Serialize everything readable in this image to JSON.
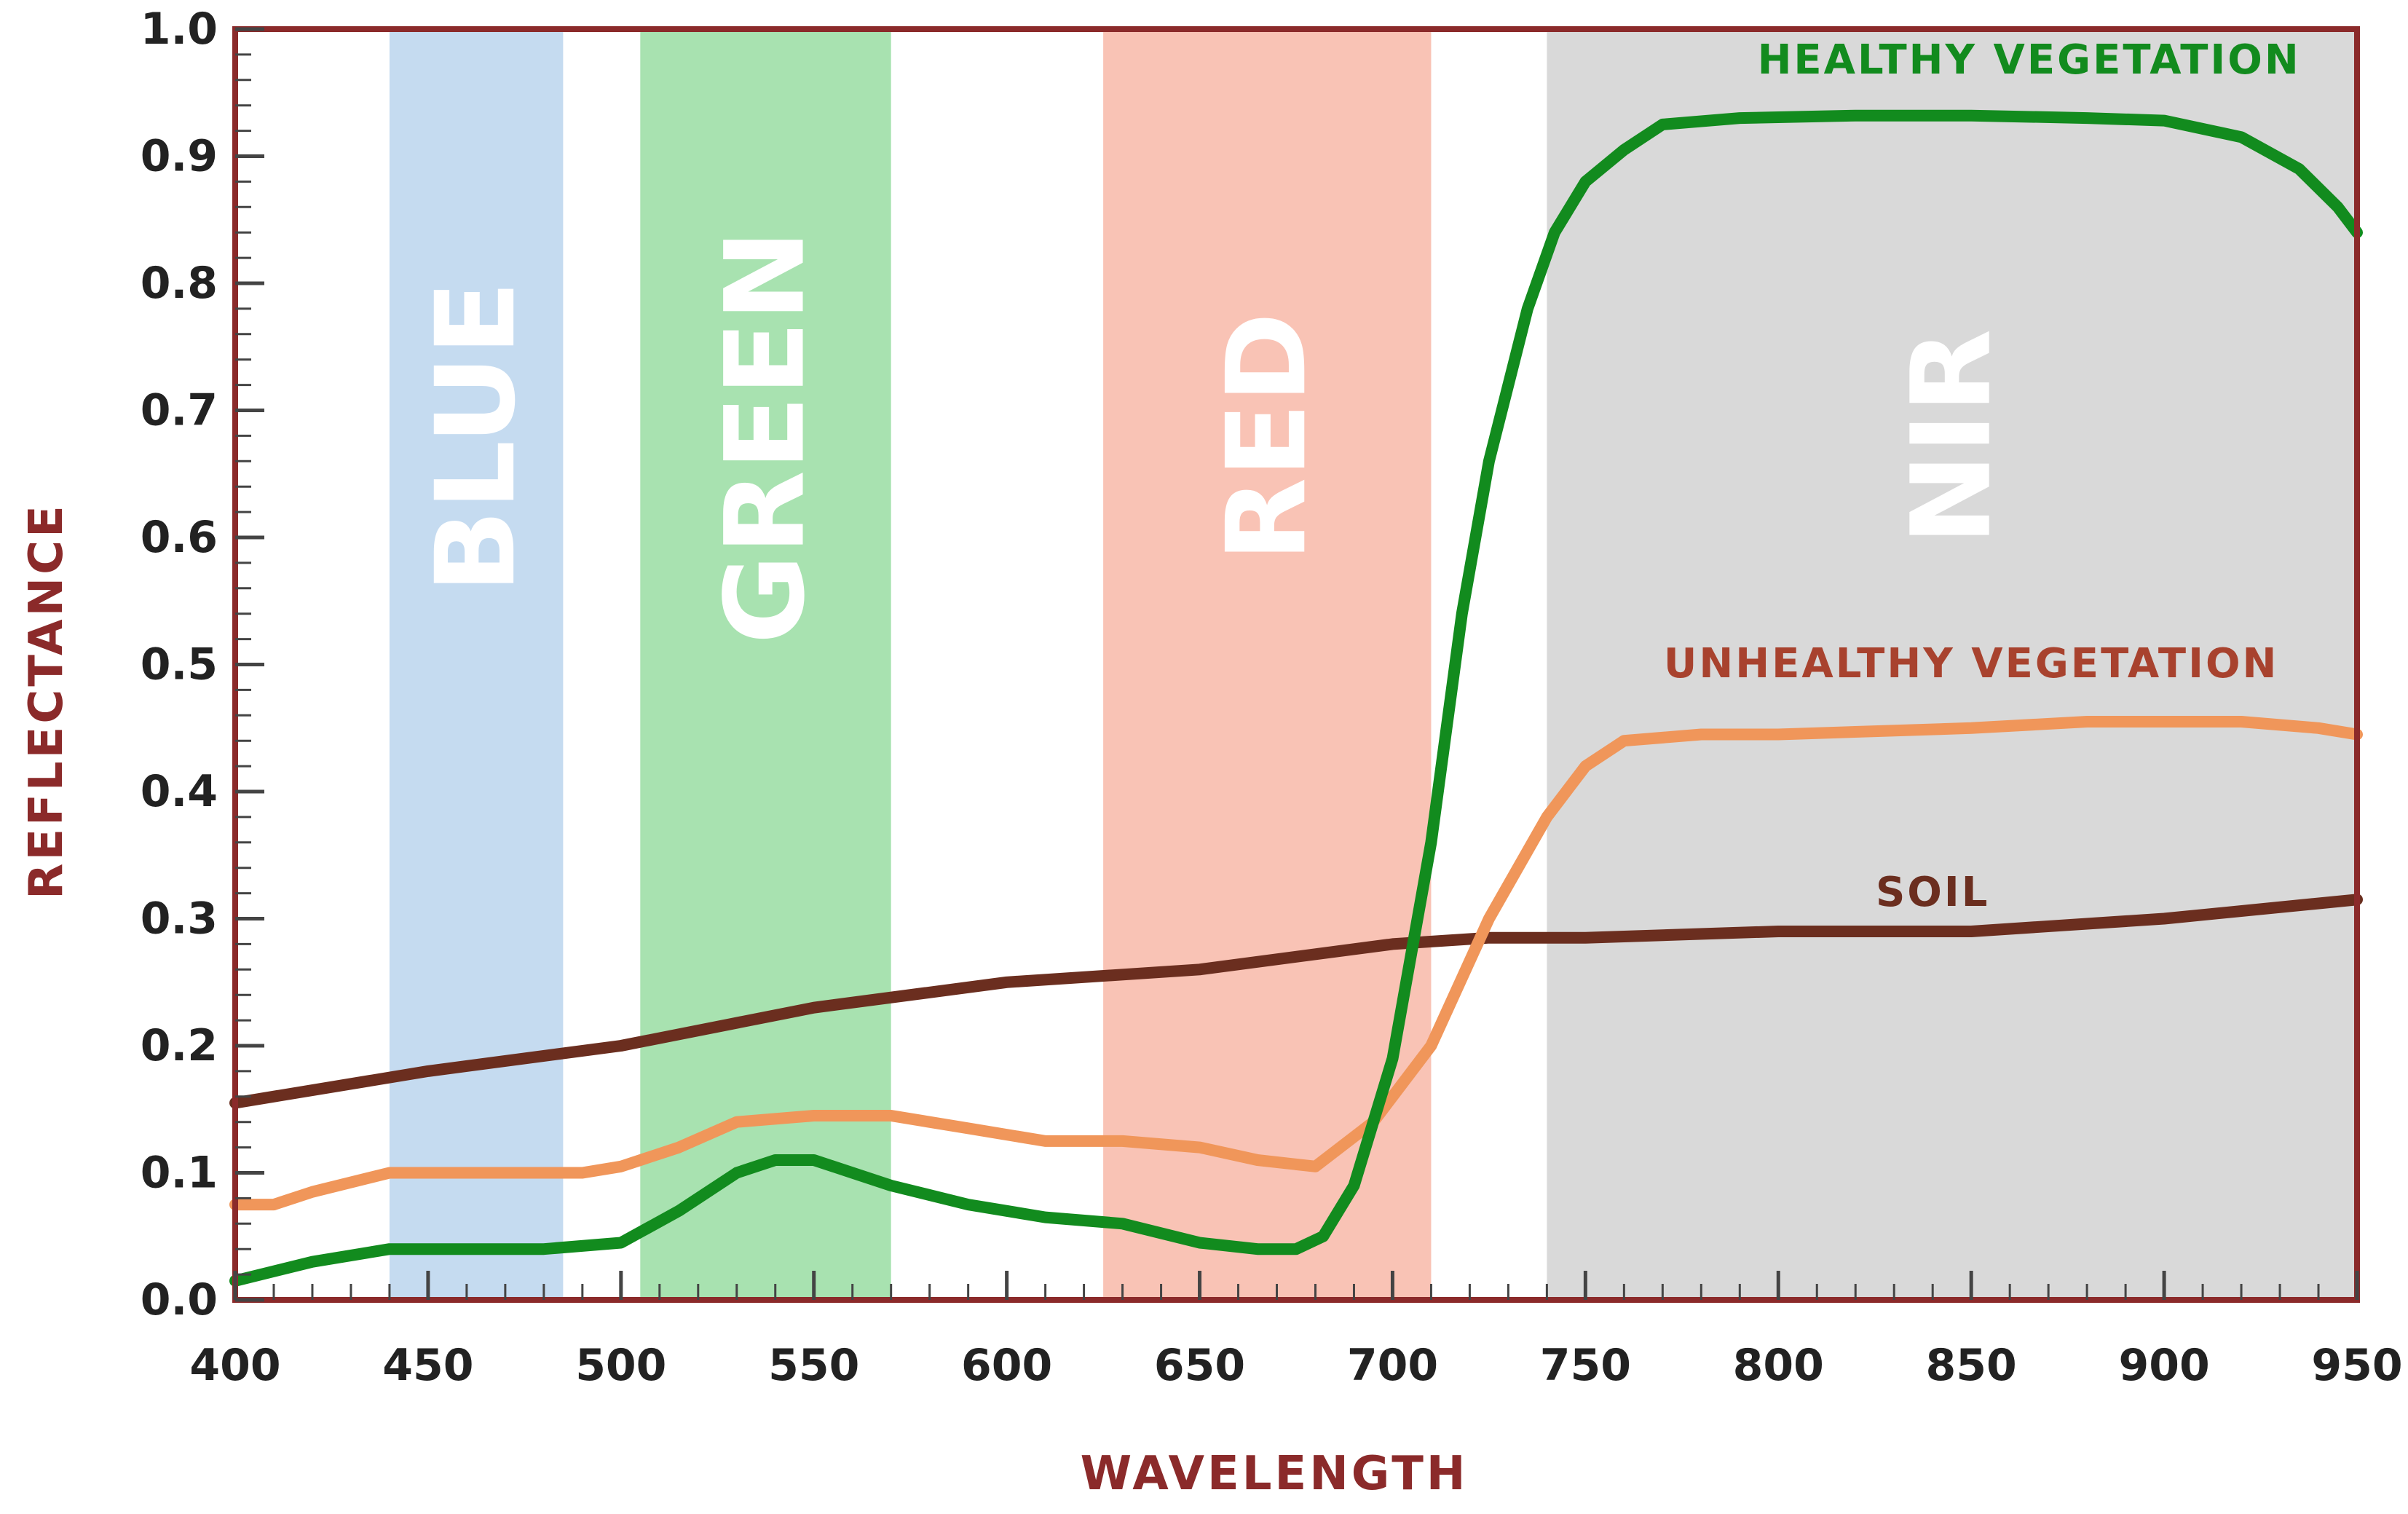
{
  "chart_data": {
    "type": "line",
    "title": "",
    "xlabel": "WAVELENGTH",
    "ylabel": "REFLECTANCE",
    "xlim": [
      400,
      950
    ],
    "ylim": [
      0,
      1
    ],
    "xticks": [
      "400",
      "450",
      "500",
      "550",
      "600",
      "650",
      "700",
      "750",
      "800",
      "850",
      "900",
      "950"
    ],
    "yticks": [
      "0.0",
      "0.1",
      "0.2",
      "0.3",
      "0.4",
      "0.5",
      "0.6",
      "0.7",
      "0.8",
      "0.9",
      "1.0"
    ],
    "grid": false,
    "bands": [
      {
        "name": "BLUE",
        "x0": 440,
        "x1": 485,
        "color": "#c5dbf0"
      },
      {
        "name": "GREEN",
        "x0": 505,
        "x1": 570,
        "color": "#a8e2b0"
      },
      {
        "name": "RED",
        "x0": 625,
        "x1": 710,
        "color": "#f9c3b5"
      },
      {
        "name": "NIR",
        "x0": 740,
        "x1": 950,
        "color": "#d9d9d9"
      }
    ],
    "series": [
      {
        "name": "HEALTHY VEGETATION",
        "color": "#128b1e",
        "x": [
          400,
          420,
          440,
          460,
          480,
          500,
          515,
          530,
          540,
          550,
          560,
          570,
          590,
          610,
          630,
          650,
          665,
          675,
          682,
          690,
          700,
          710,
          718,
          725,
          735,
          742,
          750,
          760,
          770,
          790,
          820,
          850,
          880,
          900,
          920,
          935,
          945,
          950
        ],
        "y": [
          0.015,
          0.03,
          0.04,
          0.04,
          0.04,
          0.045,
          0.07,
          0.1,
          0.11,
          0.11,
          0.1,
          0.09,
          0.075,
          0.065,
          0.06,
          0.045,
          0.04,
          0.04,
          0.05,
          0.09,
          0.19,
          0.36,
          0.54,
          0.66,
          0.78,
          0.84,
          0.88,
          0.905,
          0.925,
          0.93,
          0.932,
          0.932,
          0.93,
          0.928,
          0.915,
          0.89,
          0.86,
          0.84
        ]
      },
      {
        "name": "UNHEALTHY VEGETATION",
        "color": "#f0965a",
        "x": [
          400,
          410,
          420,
          440,
          460,
          480,
          490,
          500,
          515,
          530,
          550,
          570,
          590,
          610,
          630,
          650,
          665,
          680,
          695,
          710,
          725,
          740,
          750,
          760,
          780,
          800,
          850,
          880,
          920,
          940,
          950
        ],
        "y": [
          0.075,
          0.075,
          0.085,
          0.1,
          0.1,
          0.1,
          0.1,
          0.105,
          0.12,
          0.14,
          0.145,
          0.145,
          0.135,
          0.125,
          0.125,
          0.12,
          0.11,
          0.105,
          0.14,
          0.2,
          0.3,
          0.38,
          0.42,
          0.44,
          0.445,
          0.445,
          0.45,
          0.455,
          0.455,
          0.45,
          0.445
        ]
      },
      {
        "name": "SOIL",
        "color": "#6b2e1f",
        "x": [
          400,
          450,
          500,
          550,
          600,
          650,
          700,
          725,
          750,
          800,
          850,
          900,
          950
        ],
        "y": [
          0.155,
          0.18,
          0.2,
          0.23,
          0.25,
          0.26,
          0.28,
          0.285,
          0.285,
          0.29,
          0.29,
          0.3,
          0.315
        ]
      }
    ],
    "labels": [
      {
        "text": "HEALTHY VEGETATION",
        "x": 865,
        "y": 0.965,
        "color": "#128b1e"
      },
      {
        "text": "UNHEALTHY VEGETATION",
        "x": 850,
        "y": 0.49,
        "color": "#a8422e"
      },
      {
        "text": "SOIL",
        "x": 840,
        "y": 0.31,
        "color": "#6b2e1f"
      }
    ]
  }
}
